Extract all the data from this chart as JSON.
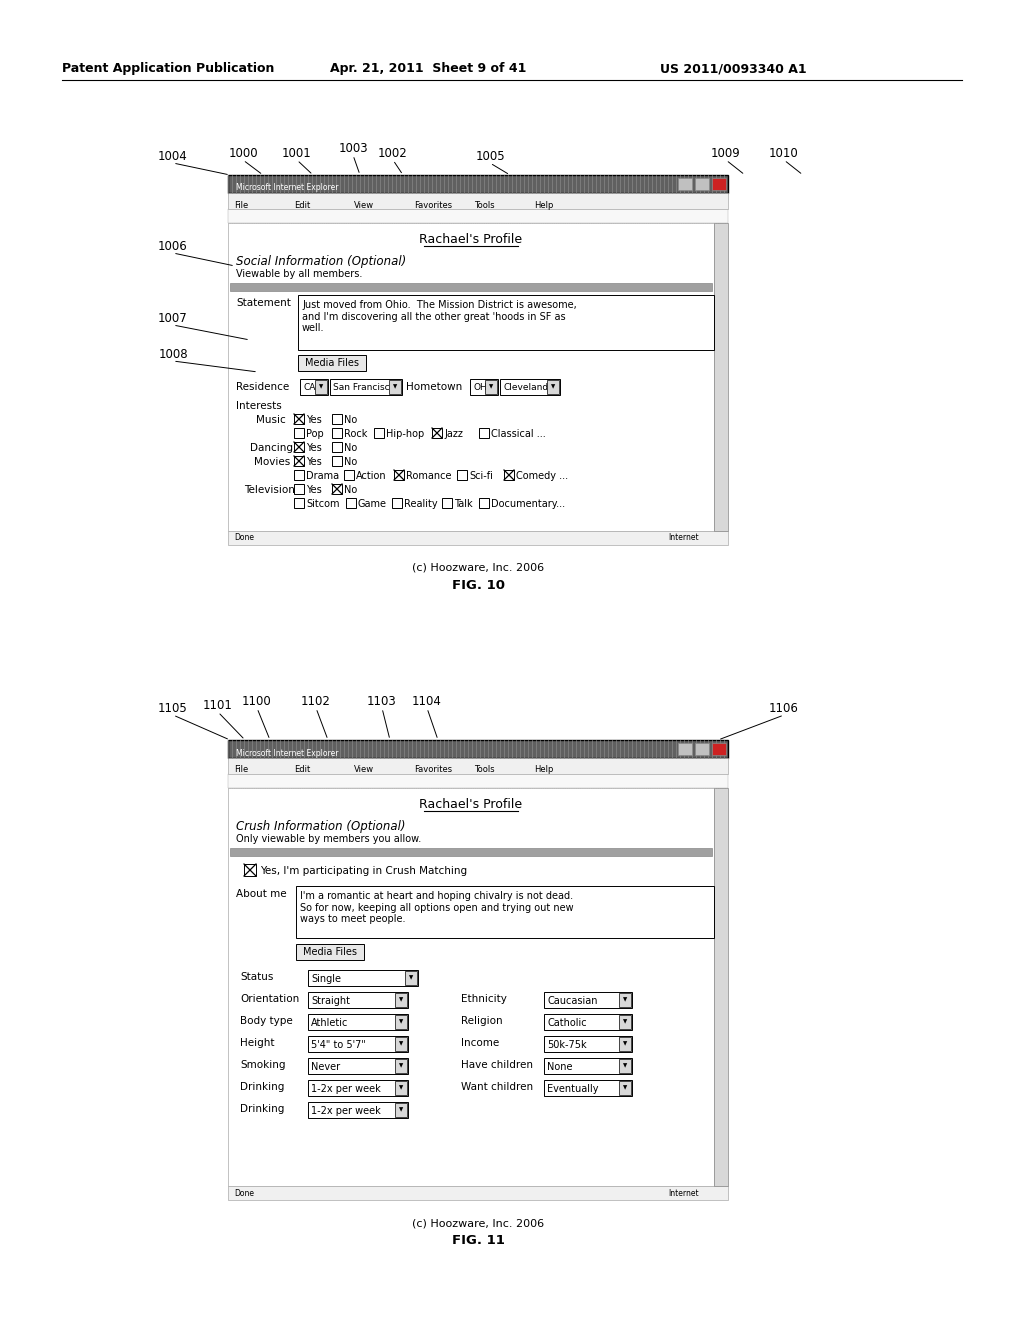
{
  "bg_color": "#ffffff",
  "header_text": "Patent Application Publication",
  "header_date": "Apr. 21, 2011  Sheet 9 of 41",
  "header_patent": "US 2011/0093340 A1",
  "fig10_title": "Rachael's Profile",
  "fig10_section": "Social Information (Optional)",
  "fig10_viewable": "Viewable by all members.",
  "fig10_statement_label": "Statement",
  "fig10_statement_text": "Just moved from Ohio.  The Mission District is awesome,\nand I'm discovering all the other great 'hoods in SF as\nwell.",
  "fig10_media_btn": "Media Files",
  "fig10_copyright": "(c) Hoozware, Inc. 2006",
  "fig10_fignum": "FIG. 10",
  "fig11_title": "Rachael's Profile",
  "fig11_section": "Crush Information (Optional)",
  "fig11_viewable": "Only viewable by members you allow.",
  "fig11_checkbox": "Yes, I'm participating in Crush Matching",
  "fig11_aboutme_label": "About me",
  "fig11_aboutme_text": "I'm a romantic at heart and hoping chivalry is not dead.\nSo for now, keeping all options open and trying out new\nways to meet people.",
  "fig11_media_btn": "Media Files",
  "fig11_fields_left": [
    [
      "Status",
      "Single"
    ],
    [
      "Orientation",
      "Straight"
    ],
    [
      "Body type",
      "Athletic"
    ],
    [
      "Height",
      "5'4\" to 5'7\""
    ],
    [
      "Smoking",
      "Never"
    ],
    [
      "Drinking",
      "1-2x per week"
    ]
  ],
  "fig11_fields_right": [
    [
      "Ethnicity",
      "Caucasian"
    ],
    [
      "Religion",
      "Catholic"
    ],
    [
      "Income",
      "50k-75k"
    ],
    [
      "Have children",
      "None"
    ],
    [
      "Want children",
      "Eventually"
    ]
  ],
  "fig11_copyright": "(c) Hoozware, Inc. 2006",
  "fig11_fignum": "FIG. 11"
}
